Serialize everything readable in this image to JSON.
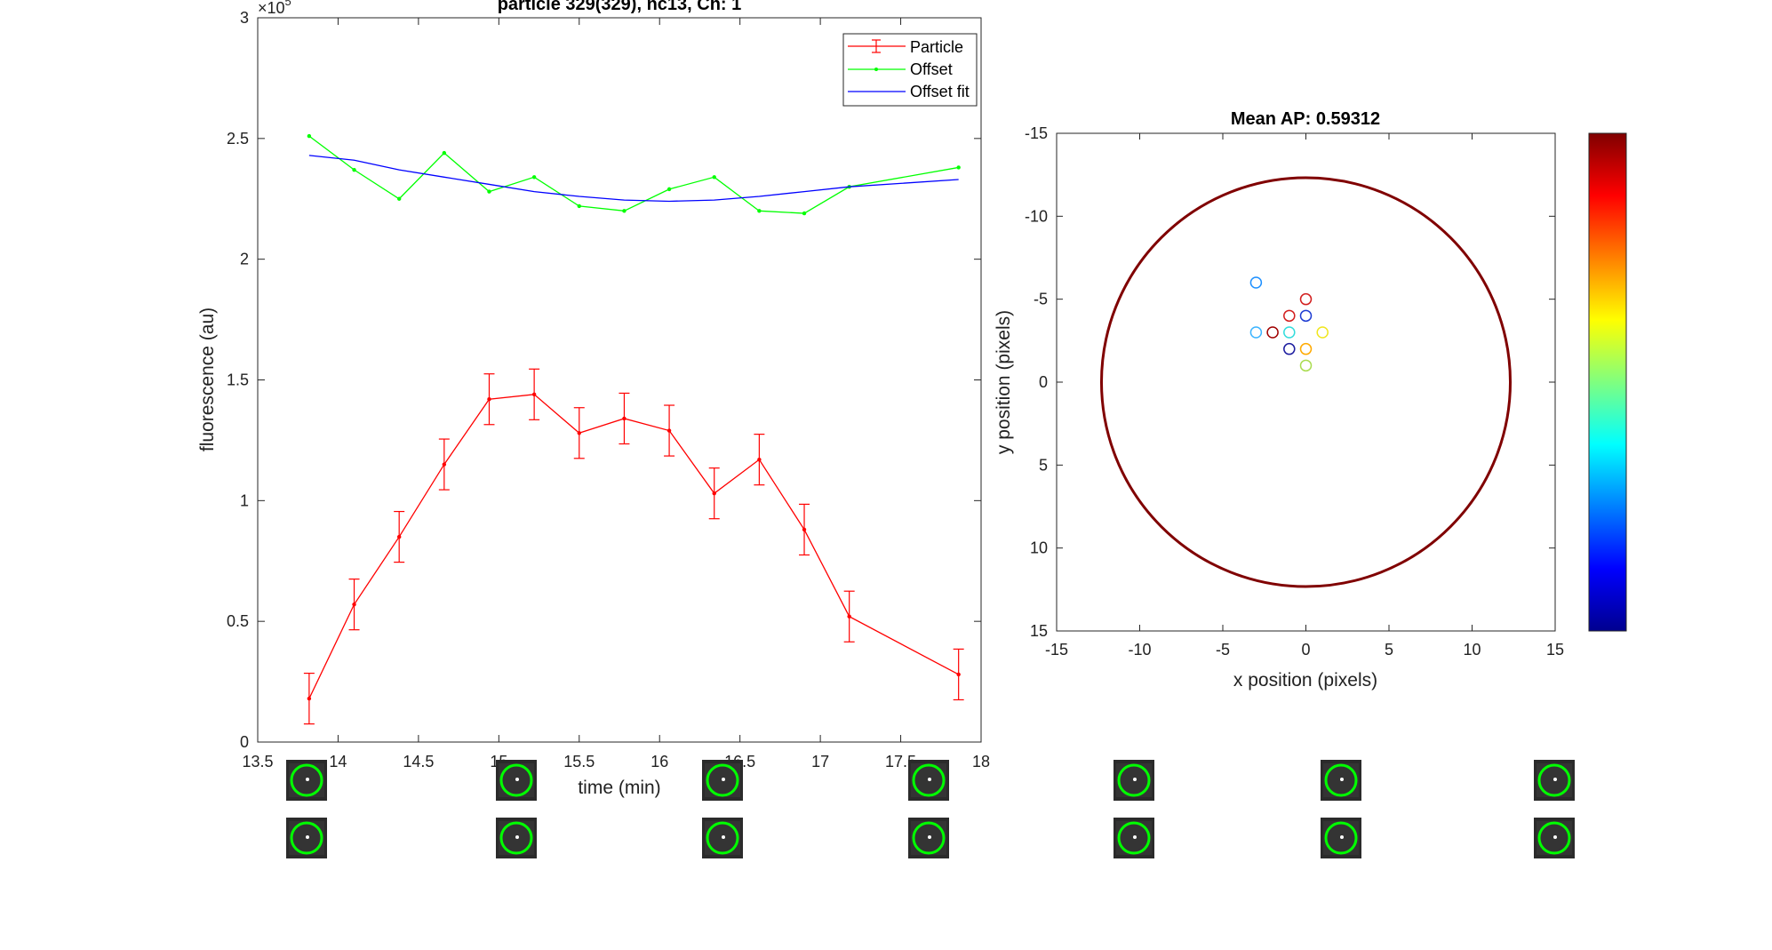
{
  "chart_data": [
    {
      "type": "line",
      "title": "particle 329(329), nc13, Ch: 1",
      "xlabel": "time (min)",
      "ylabel": "fluorescence (au)",
      "y_exponent_label": "×10",
      "y_exponent": "5",
      "xlim": [
        13.5,
        18
      ],
      "ylim": [
        0,
        3
      ],
      "xticks": [
        13.5,
        14,
        14.5,
        15,
        15.5,
        16,
        16.5,
        17,
        17.5,
        18
      ],
      "yticks": [
        0,
        0.5,
        1,
        1.5,
        2,
        2.5,
        3
      ],
      "legend_position": "top-right",
      "legend": [
        "Particle",
        "Offset",
        "Offset fit"
      ],
      "series": [
        {
          "name": "Particle",
          "color": "#ff0000",
          "x": [
            13.82,
            14.1,
            14.38,
            14.66,
            14.94,
            15.22,
            15.5,
            15.78,
            16.06,
            16.34,
            16.62,
            16.9,
            17.18,
            17.86
          ],
          "y": [
            0.18,
            0.57,
            0.85,
            1.15,
            1.42,
            1.44,
            1.28,
            1.34,
            1.29,
            1.03,
            1.17,
            0.88,
            0.52,
            0.28
          ],
          "error": [
            0.105,
            0.105,
            0.105,
            0.105,
            0.105,
            0.105,
            0.105,
            0.105,
            0.105,
            0.105,
            0.105,
            0.105,
            0.105,
            0.105
          ]
        },
        {
          "name": "Offset",
          "color": "#00ff00",
          "x": [
            13.82,
            14.1,
            14.38,
            14.66,
            14.94,
            15.22,
            15.5,
            15.78,
            16.06,
            16.34,
            16.62,
            16.9,
            17.18,
            17.86
          ],
          "y": [
            2.51,
            2.37,
            2.25,
            2.44,
            2.28,
            2.34,
            2.22,
            2.2,
            2.29,
            2.34,
            2.2,
            2.19,
            2.3,
            2.38
          ]
        },
        {
          "name": "Offset fit",
          "color": "#0000ff",
          "x": [
            13.82,
            14.1,
            14.38,
            14.66,
            14.94,
            15.22,
            15.5,
            15.78,
            16.06,
            16.34,
            16.62,
            16.9,
            17.18,
            17.86
          ],
          "y": [
            2.43,
            2.41,
            2.37,
            2.34,
            2.31,
            2.28,
            2.26,
            2.245,
            2.24,
            2.245,
            2.26,
            2.28,
            2.3,
            2.33
          ]
        }
      ]
    },
    {
      "type": "scatter",
      "title": "Mean AP: 0.59312",
      "xlabel": "x position (pixels)",
      "ylabel": "y position (pixels)",
      "xlim": [
        -15,
        15
      ],
      "ylim": [
        -15,
        15
      ],
      "y_reversed": true,
      "xticks": [
        -15,
        -10,
        -5,
        0,
        5,
        10,
        15
      ],
      "yticks": [
        -15,
        -10,
        -5,
        0,
        5,
        10,
        15
      ],
      "boundary_circle": {
        "center": [
          0,
          0
        ],
        "radius": 12.3,
        "color": "#800000"
      },
      "colorbar": {
        "colormap": "jet"
      },
      "points": [
        {
          "x": -3,
          "y": -6,
          "color": "#1e90ff"
        },
        {
          "x": 0,
          "y": -5,
          "color": "#d21e1e"
        },
        {
          "x": -1,
          "y": -4,
          "color": "#d21e1e"
        },
        {
          "x": 0,
          "y": -4,
          "color": "#1e3cd2"
        },
        {
          "x": -3,
          "y": -3,
          "color": "#3cb4ff"
        },
        {
          "x": -2,
          "y": -3,
          "color": "#a00000"
        },
        {
          "x": -1,
          "y": -3,
          "color": "#32dcdc"
        },
        {
          "x": 1,
          "y": -3,
          "color": "#f0e61e"
        },
        {
          "x": -1,
          "y": -2,
          "color": "#1e1ea0"
        },
        {
          "x": 0,
          "y": -2,
          "color": "#ffaa00"
        },
        {
          "x": 0,
          "y": -1,
          "color": "#aadc50"
        }
      ]
    }
  ]
}
